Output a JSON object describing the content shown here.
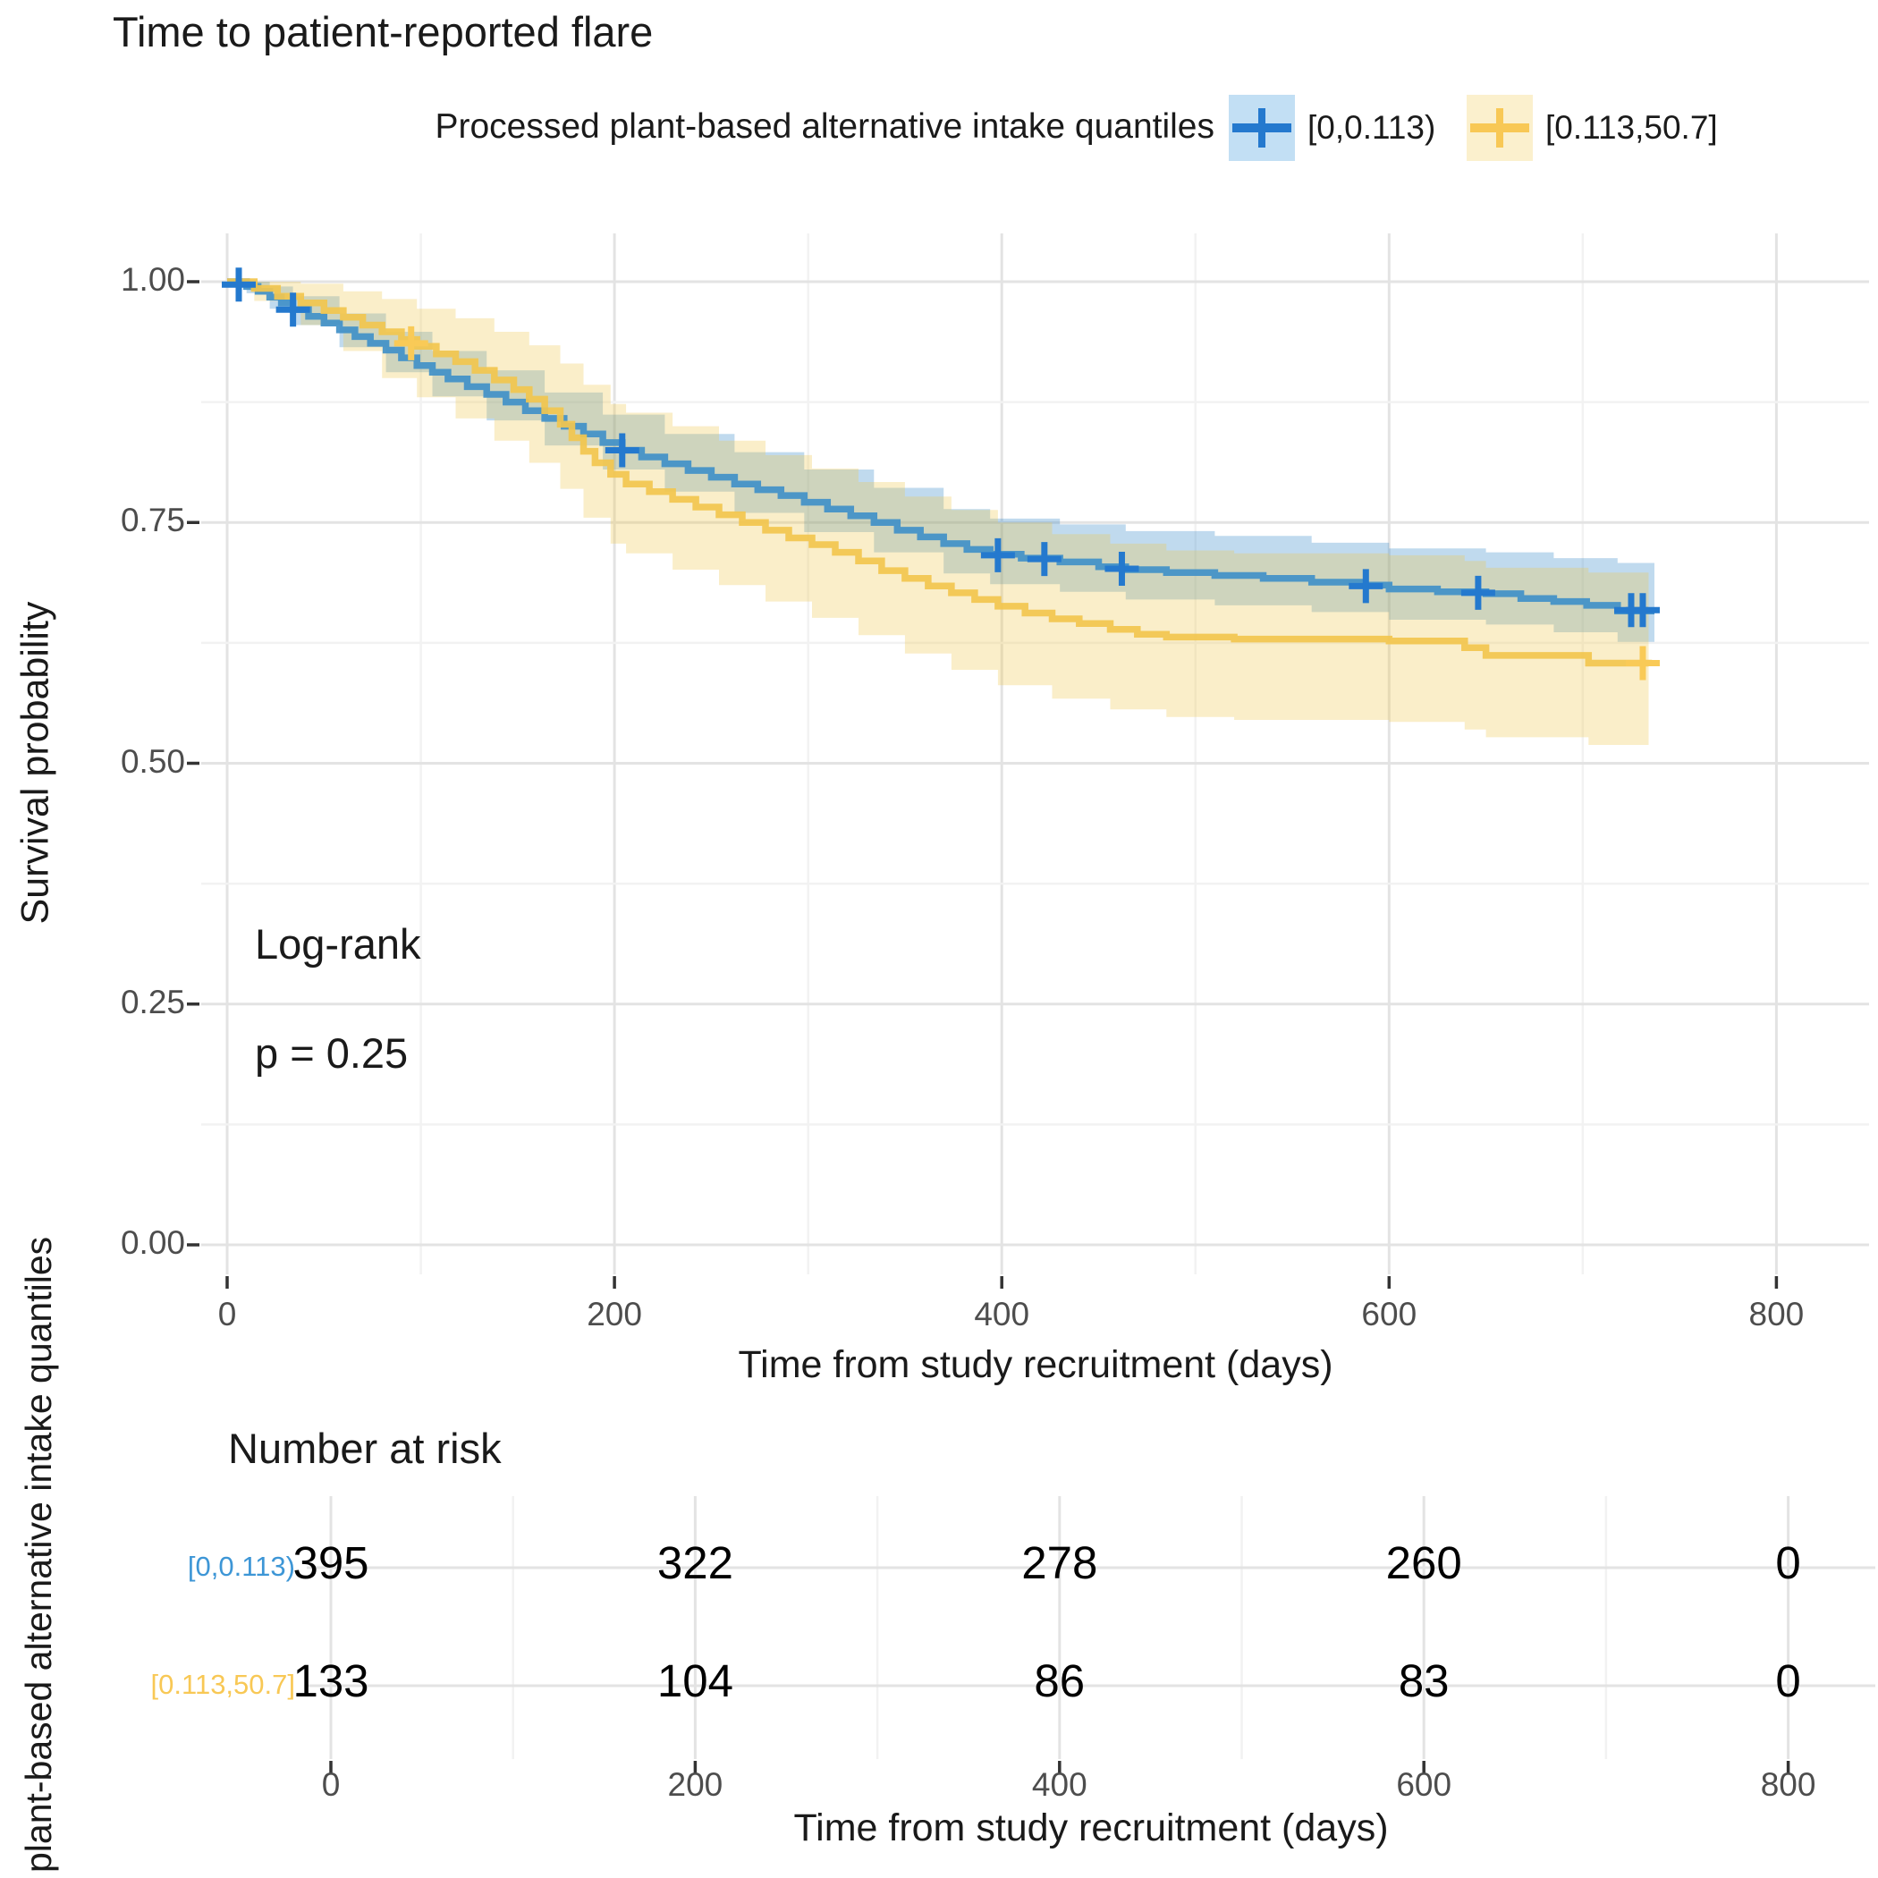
{
  "title": "Time to patient-reported flare",
  "legend": {
    "title": "Processed plant-based alternative intake quantiles",
    "items": [
      {
        "label": "[0,0.113)",
        "color": "#2479ce",
        "key_bg": "#c2dff4"
      },
      {
        "label": "[0.113,50.7]",
        "color": "#f8c855",
        "key_bg": "#fbf0cd"
      }
    ]
  },
  "annotations": {
    "line1": "Log-rank",
    "line2": "p = 0.25"
  },
  "axes": {
    "y": {
      "title": "Survival probability",
      "tick_values": [
        1,
        0.75,
        0.5,
        0.25,
        0
      ],
      "tick_labels": [
        "1.00",
        "0.75",
        "0.50",
        "0.25",
        "0.00"
      ]
    },
    "x": {
      "title": "Time from study recruitment (days)",
      "tick_values": [
        0,
        200,
        400,
        600,
        800
      ],
      "tick_labels": [
        "0",
        "200",
        "400",
        "600",
        "800"
      ]
    }
  },
  "risk_table": {
    "title": "Number at risk",
    "side_label": "plant-based alternative intake quantiles",
    "rows": [
      {
        "label": "[0,0.113)",
        "color": "#3d96d6",
        "counts": [
          395,
          322,
          278,
          260,
          0
        ]
      },
      {
        "label": "[0.113,50.7]",
        "color": "#f8c855",
        "counts": [
          133,
          104,
          86,
          83,
          0
        ]
      }
    ],
    "axis": {
      "title": "Time from study recruitment (days)",
      "tick_values": [
        0,
        200,
        400,
        600,
        800
      ],
      "tick_labels": [
        "0",
        "200",
        "400",
        "600",
        "800"
      ]
    }
  },
  "colors": {
    "blue_line": "#4190c8",
    "blue_censor": "#2479ce",
    "blue_band": "#2e86c8",
    "yellow_line": "#f2c64e",
    "yellow_censor": "#f9ca57",
    "yellow_band": "#f0c84c",
    "grid_major": "#e3e3e3",
    "grid_minor": "#f2f2f2",
    "tick_mark": "#333333",
    "tick_text": "#4d4d4d"
  },
  "chart_data": {
    "type": "line",
    "subtype": "kaplan-meier-step",
    "title": "Time to patient-reported flare",
    "xlabel": "Time from study recruitment (days)",
    "ylabel": "Survival probability",
    "xlim": [
      0,
      848
    ],
    "ylim": [
      0,
      1
    ],
    "x_ticks": [
      0,
      200,
      400,
      600,
      800
    ],
    "y_ticks": [
      0,
      0.25,
      0.5,
      0.75,
      1
    ],
    "grid": true,
    "legend_position": "top",
    "logrank_p": 0.25,
    "series": [
      {
        "name": "[0,0.113)",
        "n": 395,
        "steps": [
          [
            0,
            1
          ],
          [
            10,
            0.995
          ],
          [
            16,
            0.99
          ],
          [
            22,
            0.984
          ],
          [
            28,
            0.978
          ],
          [
            34,
            0.971
          ],
          [
            42,
            0.964
          ],
          [
            50,
            0.957
          ],
          [
            58,
            0.95
          ],
          [
            66,
            0.943
          ],
          [
            74,
            0.936
          ],
          [
            82,
            0.929
          ],
          [
            90,
            0.921
          ],
          [
            98,
            0.913
          ],
          [
            106,
            0.906
          ],
          [
            114,
            0.899
          ],
          [
            124,
            0.891
          ],
          [
            134,
            0.883
          ],
          [
            144,
            0.875
          ],
          [
            154,
            0.866
          ],
          [
            164,
            0.858
          ],
          [
            174,
            0.85
          ],
          [
            184,
            0.842
          ],
          [
            194,
            0.833
          ],
          [
            204,
            0.825
          ],
          [
            214,
            0.818
          ],
          [
            226,
            0.811
          ],
          [
            238,
            0.804
          ],
          [
            250,
            0.797
          ],
          [
            262,
            0.79
          ],
          [
            274,
            0.784
          ],
          [
            286,
            0.778
          ],
          [
            298,
            0.771
          ],
          [
            310,
            0.764
          ],
          [
            322,
            0.757
          ],
          [
            334,
            0.75
          ],
          [
            346,
            0.742
          ],
          [
            358,
            0.735
          ],
          [
            370,
            0.728
          ],
          [
            382,
            0.722
          ],
          [
            394,
            0.717
          ],
          [
            410,
            0.713
          ],
          [
            430,
            0.709
          ],
          [
            450,
            0.704
          ],
          [
            464,
            0.701
          ],
          [
            485,
            0.698
          ],
          [
            510,
            0.695
          ],
          [
            535,
            0.692
          ],
          [
            560,
            0.688
          ],
          [
            585,
            0.685
          ],
          [
            600,
            0.681
          ],
          [
            625,
            0.678
          ],
          [
            650,
            0.676
          ],
          [
            668,
            0.671
          ],
          [
            685,
            0.668
          ],
          [
            702,
            0.664
          ],
          [
            718,
            0.658
          ],
          [
            737,
            0.657
          ]
        ],
        "censors": [
          [
            6,
            0.997
          ],
          [
            34,
            0.971
          ],
          [
            204,
            0.825
          ],
          [
            398,
            0.716
          ],
          [
            422,
            0.712
          ],
          [
            462,
            0.702
          ],
          [
            588,
            0.684
          ],
          [
            646,
            0.677
          ],
          [
            725,
            0.659
          ],
          [
            731,
            0.659
          ]
        ],
        "band": [
          [
            0,
            1,
            1
          ],
          [
            10,
            0.988,
            1
          ],
          [
            22,
            0.972,
            0.995
          ],
          [
            34,
            0.955,
            0.985
          ],
          [
            58,
            0.932,
            0.967
          ],
          [
            82,
            0.906,
            0.948
          ],
          [
            106,
            0.881,
            0.928
          ],
          [
            134,
            0.856,
            0.908
          ],
          [
            164,
            0.83,
            0.885
          ],
          [
            194,
            0.805,
            0.862
          ],
          [
            226,
            0.782,
            0.842
          ],
          [
            262,
            0.76,
            0.823
          ],
          [
            298,
            0.74,
            0.805
          ],
          [
            334,
            0.719,
            0.786
          ],
          [
            370,
            0.697,
            0.764
          ],
          [
            394,
            0.686,
            0.754
          ],
          [
            430,
            0.678,
            0.748
          ],
          [
            464,
            0.67,
            0.741
          ],
          [
            510,
            0.664,
            0.736
          ],
          [
            560,
            0.657,
            0.729
          ],
          [
            600,
            0.649,
            0.723
          ],
          [
            650,
            0.644,
            0.719
          ],
          [
            685,
            0.636,
            0.713
          ],
          [
            718,
            0.626,
            0.708
          ],
          [
            737,
            0.624,
            0.708
          ]
        ]
      },
      {
        "name": "[0.113,50.7]",
        "n": 133,
        "steps": [
          [
            0,
            1
          ],
          [
            14,
            0.993
          ],
          [
            26,
            0.985
          ],
          [
            38,
            0.978
          ],
          [
            50,
            0.97
          ],
          [
            60,
            0.963
          ],
          [
            70,
            0.955
          ],
          [
            80,
            0.948
          ],
          [
            90,
            0.94
          ],
          [
            98,
            0.933
          ],
          [
            108,
            0.925
          ],
          [
            118,
            0.917
          ],
          [
            128,
            0.908
          ],
          [
            138,
            0.898
          ],
          [
            148,
            0.888
          ],
          [
            156,
            0.878
          ],
          [
            164,
            0.866
          ],
          [
            172,
            0.852
          ],
          [
            178,
            0.838
          ],
          [
            184,
            0.824
          ],
          [
            190,
            0.812
          ],
          [
            198,
            0.8
          ],
          [
            206,
            0.79
          ],
          [
            218,
            0.782
          ],
          [
            230,
            0.774
          ],
          [
            242,
            0.766
          ],
          [
            254,
            0.758
          ],
          [
            266,
            0.75
          ],
          [
            278,
            0.742
          ],
          [
            290,
            0.734
          ],
          [
            302,
            0.727
          ],
          [
            314,
            0.719
          ],
          [
            326,
            0.71
          ],
          [
            338,
            0.7
          ],
          [
            350,
            0.692
          ],
          [
            362,
            0.684
          ],
          [
            374,
            0.677
          ],
          [
            386,
            0.67
          ],
          [
            398,
            0.663
          ],
          [
            412,
            0.656
          ],
          [
            426,
            0.65
          ],
          [
            440,
            0.645
          ],
          [
            456,
            0.639
          ],
          [
            470,
            0.634
          ],
          [
            485,
            0.631
          ],
          [
            520,
            0.629
          ],
          [
            600,
            0.627
          ],
          [
            639,
            0.62
          ],
          [
            650,
            0.612
          ],
          [
            703,
            0.604
          ],
          [
            734,
            0.603
          ]
        ],
        "censors": [
          [
            95,
            0.936
          ],
          [
            731,
            0.604
          ]
        ],
        "band": [
          [
            0,
            1,
            1
          ],
          [
            14,
            0.98,
            1
          ],
          [
            38,
            0.955,
            0.998
          ],
          [
            60,
            0.928,
            0.99
          ],
          [
            80,
            0.9,
            0.982
          ],
          [
            98,
            0.88,
            0.972
          ],
          [
            118,
            0.858,
            0.962
          ],
          [
            138,
            0.835,
            0.948
          ],
          [
            156,
            0.812,
            0.934
          ],
          [
            172,
            0.785,
            0.915
          ],
          [
            184,
            0.755,
            0.893
          ],
          [
            198,
            0.728,
            0.873
          ],
          [
            206,
            0.718,
            0.864
          ],
          [
            230,
            0.701,
            0.85
          ],
          [
            254,
            0.685,
            0.835
          ],
          [
            278,
            0.668,
            0.82
          ],
          [
            302,
            0.651,
            0.806
          ],
          [
            326,
            0.633,
            0.792
          ],
          [
            350,
            0.614,
            0.777
          ],
          [
            374,
            0.597,
            0.763
          ],
          [
            398,
            0.581,
            0.75
          ],
          [
            426,
            0.567,
            0.738
          ],
          [
            456,
            0.556,
            0.728
          ],
          [
            485,
            0.548,
            0.721
          ],
          [
            520,
            0.545,
            0.718
          ],
          [
            600,
            0.543,
            0.716
          ],
          [
            639,
            0.535,
            0.71
          ],
          [
            650,
            0.527,
            0.703
          ],
          [
            703,
            0.519,
            0.698
          ],
          [
            734,
            0.517,
            0.697
          ]
        ]
      }
    ],
    "risk_table": {
      "title": "Number at risk",
      "times": [
        0,
        200,
        400,
        600,
        800
      ],
      "counts": [
        [
          395,
          322,
          278,
          260,
          0
        ],
        [
          133,
          104,
          86,
          83,
          0
        ]
      ]
    }
  }
}
